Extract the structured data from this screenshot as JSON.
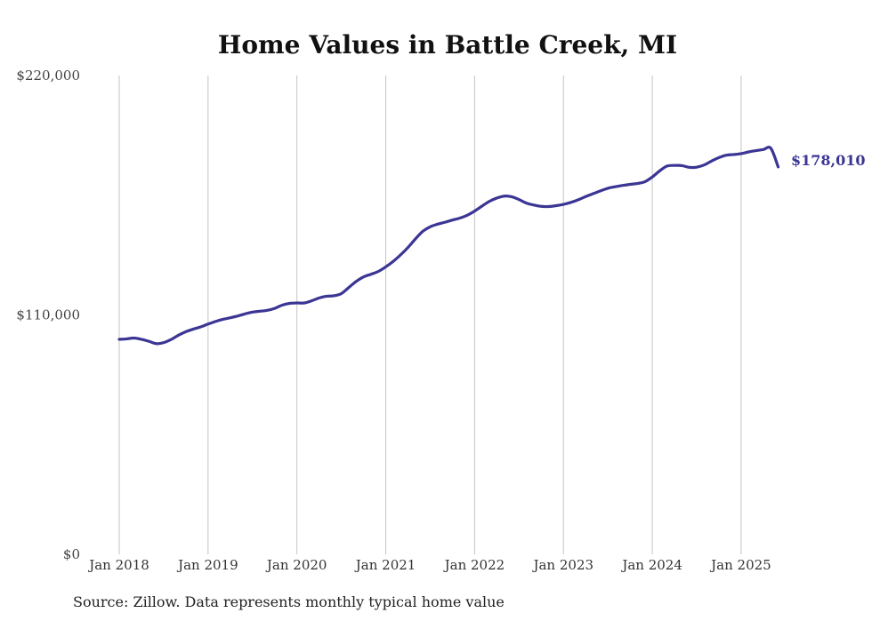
{
  "chart_data": {
    "type": "line",
    "title": "Home Values in Battle Creek, MI",
    "xlabel": "",
    "ylabel": "",
    "ylim": [
      0,
      220000
    ],
    "yticks": [
      {
        "value": 0,
        "label": "$0"
      },
      {
        "value": 110000,
        "label": "$110,000"
      },
      {
        "value": 220000,
        "label": "$220,000"
      }
    ],
    "xticks": [
      {
        "value": "2018-01",
        "label": "Jan 2018"
      },
      {
        "value": "2019-01",
        "label": "Jan 2019"
      },
      {
        "value": "2020-01",
        "label": "Jan 2020"
      },
      {
        "value": "2021-01",
        "label": "Jan 2021"
      },
      {
        "value": "2022-01",
        "label": "Jan 2022"
      },
      {
        "value": "2023-01",
        "label": "Jan 2023"
      },
      {
        "value": "2024-01",
        "label": "Jan 2024"
      },
      {
        "value": "2025-01",
        "label": "Jan 2025"
      }
    ],
    "grid": {
      "vertical": true,
      "horizontal": false
    },
    "line_color": "#3b3594",
    "end_label": "$178,010",
    "series": [
      {
        "x": [
          "2018-01",
          "2018-02",
          "2018-03",
          "2018-04",
          "2018-05",
          "2018-06",
          "2018-07",
          "2018-08",
          "2018-09",
          "2018-10",
          "2018-11",
          "2018-12",
          "2019-01",
          "2019-02",
          "2019-03",
          "2019-04",
          "2019-05",
          "2019-06",
          "2019-07",
          "2019-08",
          "2019-09",
          "2019-10",
          "2019-11",
          "2019-12",
          "2020-01",
          "2020-02",
          "2020-03",
          "2020-04",
          "2020-05",
          "2020-06",
          "2020-07",
          "2020-08",
          "2020-09",
          "2020-10",
          "2020-11",
          "2020-12",
          "2021-01",
          "2021-02",
          "2021-03",
          "2021-04",
          "2021-05",
          "2021-06",
          "2021-07",
          "2021-08",
          "2021-09",
          "2021-10",
          "2021-11",
          "2021-12",
          "2022-01",
          "2022-02",
          "2022-03",
          "2022-04",
          "2022-05",
          "2022-06",
          "2022-07",
          "2022-08",
          "2022-09",
          "2022-10",
          "2022-11",
          "2022-12",
          "2023-01",
          "2023-02",
          "2023-03",
          "2023-04",
          "2023-05",
          "2023-06",
          "2023-07",
          "2023-08",
          "2023-09",
          "2023-10",
          "2023-11",
          "2023-12",
          "2024-01",
          "2024-02",
          "2024-03",
          "2024-04",
          "2024-05",
          "2024-06",
          "2024-07",
          "2024-08",
          "2024-09",
          "2024-10",
          "2024-11",
          "2024-12",
          "2025-01",
          "2025-02",
          "2025-03",
          "2025-04",
          "2025-05",
          "2025-06"
        ],
        "values": [
          98800,
          99000,
          99400,
          98800,
          97900,
          96800,
          97300,
          98700,
          100700,
          102300,
          103500,
          104500,
          105800,
          107000,
          108000,
          108700,
          109500,
          110500,
          111300,
          111700,
          112100,
          113000,
          114500,
          115300,
          115500,
          115500,
          116500,
          117800,
          118600,
          118800,
          119800,
          122600,
          125400,
          127500,
          128700,
          130000,
          132100,
          134600,
          137600,
          141000,
          144900,
          148400,
          150500,
          151700,
          152600,
          153600,
          154500,
          155800,
          157700,
          160000,
          162200,
          163700,
          164600,
          164300,
          163000,
          161400,
          160500,
          159900,
          159800,
          160200,
          160800,
          161700,
          162900,
          164400,
          165700,
          167000,
          168200,
          168900,
          169500,
          170000,
          170400,
          171200,
          173400,
          176200,
          178400,
          178700,
          178600,
          177800,
          177900,
          178900,
          180700,
          182300,
          183400,
          183700,
          184100,
          184900,
          185500,
          186000,
          186600,
          178010
        ]
      }
    ],
    "source": "Source: Zillow. Data represents monthly typical home value"
  }
}
